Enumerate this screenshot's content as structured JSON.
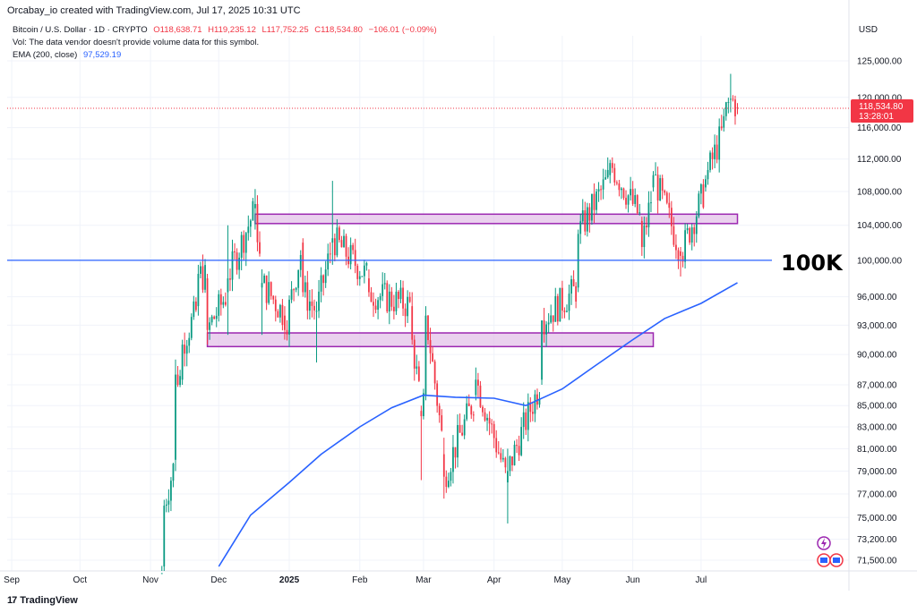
{
  "header": {
    "text": "Orcabay_io created with TradingView.com, Jul 17, 2025 10:31 UTC"
  },
  "legend": {
    "symbol": "Bitcoin / U.S. Dollar · 1D · CRYPTO",
    "open": "O118,638.71",
    "high": "H119,235.12",
    "low": "L117,752.25",
    "close": "C118,534.80",
    "change": "−106.01 (−0.09%)",
    "volume_note": "Vol: The data vendor doesn't provide volume data for this symbol.",
    "ema_label": "EMA (200, close)",
    "ema_value": "97,529.19"
  },
  "currency": "USD",
  "footer": {
    "brand": "TradingView",
    "logo_glyph": "17"
  },
  "annotation": {
    "text": "100K"
  },
  "price_label": {
    "price": "118,534.80",
    "countdown": "13:28:01"
  },
  "level_label": "100,000.00",
  "colors": {
    "up": "#089981",
    "down": "#f23645",
    "ema": "#2962ff",
    "zone_fill": "#e1bee7",
    "zone_border": "#9c27b0",
    "level_line": "#2962ff"
  },
  "chart_data": {
    "type": "candlestick",
    "title": "",
    "xlabel": "",
    "ylabel": "",
    "y_ticks": [
      {
        "value": 125000,
        "label": "125,000.00"
      },
      {
        "value": 120000,
        "label": "120,000.00"
      },
      {
        "value": 116000,
        "label": "116,000.00"
      },
      {
        "value": 112000,
        "label": "112,000.00"
      },
      {
        "value": 108000,
        "label": "108,000.00"
      },
      {
        "value": 104000,
        "label": "104,000.00"
      },
      {
        "value": 96000,
        "label": "96,000.00"
      },
      {
        "value": 93000,
        "label": "93,000.00"
      },
      {
        "value": 90000,
        "label": "90,000.00"
      },
      {
        "value": 87000,
        "label": "87,000.00"
      },
      {
        "value": 85000,
        "label": "85,000.00"
      },
      {
        "value": 83000,
        "label": "83,000.00"
      },
      {
        "value": 81000,
        "label": "81,000.00"
      },
      {
        "value": 79000,
        "label": "79,000.00"
      },
      {
        "value": 77000,
        "label": "77,000.00"
      },
      {
        "value": 75000,
        "label": "75,000.00"
      },
      {
        "value": 73200,
        "label": "73,200.00"
      },
      {
        "value": 71500,
        "label": "71,500.00"
      }
    ],
    "x_ticks": [
      {
        "date": "2024-09-01",
        "label": "Sep",
        "bold": false
      },
      {
        "date": "2024-10-01",
        "label": "Oct",
        "bold": false
      },
      {
        "date": "2024-11-01",
        "label": "Nov",
        "bold": false
      },
      {
        "date": "2024-12-01",
        "label": "Dec",
        "bold": false
      },
      {
        "date": "2025-01-01",
        "label": "2025",
        "bold": true
      },
      {
        "date": "2025-02-01",
        "label": "Feb",
        "bold": false
      },
      {
        "date": "2025-03-01",
        "label": "Mar",
        "bold": false
      },
      {
        "date": "2025-04-01",
        "label": "Apr",
        "bold": false
      },
      {
        "date": "2025-05-01",
        "label": "May",
        "bold": false
      },
      {
        "date": "2025-06-01",
        "label": "Jun",
        "bold": false
      },
      {
        "date": "2025-07-01",
        "label": "Jul",
        "bold": false
      }
    ],
    "ohlc_keypoints": [
      {
        "date": "2024-11-05",
        "open": 68000,
        "high": 70500,
        "low": 66800,
        "close": 70000
      },
      {
        "date": "2024-11-07",
        "open": 71000,
        "high": 76500,
        "low": 70500,
        "close": 76000
      },
      {
        "date": "2024-11-12",
        "open": 80000,
        "high": 89500,
        "low": 79000,
        "close": 88000
      },
      {
        "date": "2024-11-15",
        "open": 87500,
        "high": 91500,
        "low": 87000,
        "close": 91000
      },
      {
        "date": "2024-11-22",
        "open": 95000,
        "high": 99500,
        "low": 94000,
        "close": 98500
      },
      {
        "date": "2024-11-26",
        "open": 98000,
        "high": 98500,
        "low": 91000,
        "close": 92500
      },
      {
        "date": "2024-12-05",
        "open": 96500,
        "high": 104000,
        "low": 92000,
        "close": 98000
      },
      {
        "date": "2024-12-17",
        "open": 106000,
        "high": 108300,
        "low": 103500,
        "close": 106500
      },
      {
        "date": "2024-12-20",
        "open": 97000,
        "high": 99000,
        "low": 92000,
        "close": 97500
      },
      {
        "date": "2024-12-30",
        "open": 94000,
        "high": 95000,
        "low": 91500,
        "close": 92500
      },
      {
        "date": "2025-01-07",
        "open": 102000,
        "high": 102500,
        "low": 96000,
        "close": 96500
      },
      {
        "date": "2025-01-13",
        "open": 94500,
        "high": 95500,
        "low": 89200,
        "close": 94500
      },
      {
        "date": "2025-01-20",
        "open": 102000,
        "high": 109300,
        "low": 99500,
        "close": 102500
      },
      {
        "date": "2025-02-05",
        "open": 98000,
        "high": 99000,
        "low": 96000,
        "close": 96500
      },
      {
        "date": "2025-02-24",
        "open": 95000,
        "high": 96500,
        "low": 91000,
        "close": 91500
      },
      {
        "date": "2025-02-28",
        "open": 84500,
        "high": 85000,
        "low": 78200,
        "close": 84000
      },
      {
        "date": "2025-03-02",
        "open": 86000,
        "high": 95000,
        "low": 85500,
        "close": 94000
      },
      {
        "date": "2025-03-10",
        "open": 80500,
        "high": 82000,
        "low": 76600,
        "close": 78500
      },
      {
        "date": "2025-03-24",
        "open": 86000,
        "high": 88700,
        "low": 85500,
        "close": 87500
      },
      {
        "date": "2025-04-07",
        "open": 78000,
        "high": 81000,
        "low": 74500,
        "close": 79000
      },
      {
        "date": "2025-04-22",
        "open": 87500,
        "high": 93500,
        "low": 87000,
        "close": 93500
      },
      {
        "date": "2025-05-08",
        "open": 97000,
        "high": 103500,
        "low": 96500,
        "close": 103000
      },
      {
        "date": "2025-05-22",
        "open": 110000,
        "high": 111900,
        "low": 109000,
        "close": 111500
      },
      {
        "date": "2025-06-05",
        "open": 104500,
        "high": 105000,
        "low": 100500,
        "close": 101500
      },
      {
        "date": "2025-06-10",
        "open": 108500,
        "high": 110500,
        "low": 108000,
        "close": 110000
      },
      {
        "date": "2025-06-22",
        "open": 101000,
        "high": 101500,
        "low": 98200,
        "close": 100500
      },
      {
        "date": "2025-07-03",
        "open": 108500,
        "high": 110000,
        "low": 108000,
        "close": 109500
      },
      {
        "date": "2025-07-11",
        "open": 116000,
        "high": 118500,
        "low": 115500,
        "close": 117500
      },
      {
        "date": "2025-07-14",
        "open": 119800,
        "high": 123200,
        "low": 118000,
        "close": 119800
      },
      {
        "date": "2025-07-17",
        "open": 118638.71,
        "high": 119235.12,
        "low": 117752.25,
        "close": 118534.8
      }
    ],
    "ema_200": [
      {
        "date": "2024-12-01",
        "value": 71000
      },
      {
        "date": "2024-12-15",
        "value": 75200
      },
      {
        "date": "2025-01-01",
        "value": 78000
      },
      {
        "date": "2025-01-15",
        "value": 80500
      },
      {
        "date": "2025-02-01",
        "value": 83000
      },
      {
        "date": "2025-02-15",
        "value": 84800
      },
      {
        "date": "2025-03-01",
        "value": 86000
      },
      {
        "date": "2025-03-15",
        "value": 85800
      },
      {
        "date": "2025-04-01",
        "value": 85700
      },
      {
        "date": "2025-04-15",
        "value": 85000
      },
      {
        "date": "2025-05-01",
        "value": 86600
      },
      {
        "date": "2025-05-15",
        "value": 88800
      },
      {
        "date": "2025-06-01",
        "value": 91500
      },
      {
        "date": "2025-06-15",
        "value": 93700
      },
      {
        "date": "2025-07-01",
        "value": 95300
      },
      {
        "date": "2025-07-17",
        "value": 97529.19
      }
    ],
    "levels": [
      {
        "value": 100000,
        "color": "#2962ff"
      },
      {
        "value": 118534.8,
        "color": "#f23645",
        "style": "dotted"
      }
    ],
    "zones": [
      {
        "from_date": "2024-12-17",
        "to_date": "2025-07-17",
        "low": 104200,
        "high": 105300
      },
      {
        "from_date": "2024-11-26",
        "to_date": "2025-06-10",
        "low": 90800,
        "high": 92200
      }
    ]
  }
}
